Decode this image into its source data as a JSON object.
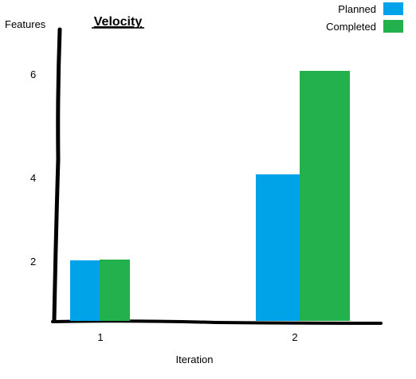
{
  "chart_data": {
    "type": "bar",
    "title": "Velocity",
    "xlabel": "Iteration",
    "ylabel": "Features",
    "categories": [
      "1",
      "2"
    ],
    "series": [
      {
        "name": "Planned",
        "color": "#00a2e8",
        "values": [
          2,
          4
        ]
      },
      {
        "name": "Completed",
        "color": "#22b14c",
        "values": [
          2,
          6
        ]
      }
    ],
    "y_ticks": [
      {
        "label": "2",
        "value": 2
      },
      {
        "label": "4",
        "value": 4
      },
      {
        "label": "6",
        "value": 6
      }
    ],
    "legend_position": "top-right",
    "grid": false
  }
}
